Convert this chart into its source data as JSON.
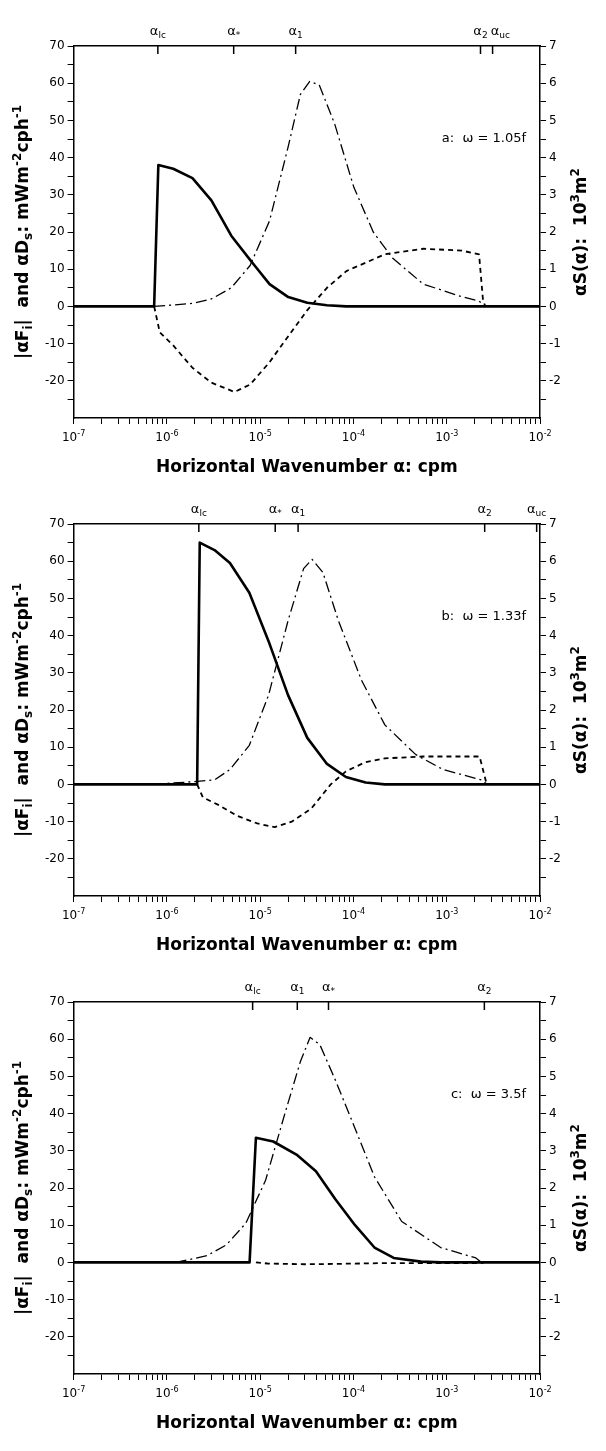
{
  "chart_data": [
    {
      "type": "line",
      "xlabel": "Horizontal Wavenumber α: cpm",
      "ylabel": "|αF$_{i}$|  and αD$_{s}$: mWm$^{-2}$cph$^{-1}$",
      "y2label": "αS(α):  10$^{3}$m$^{2}$",
      "annotations": [
        "a:  ω = 1.05f"
      ],
      "ref_lines": [
        {
          "axis": "x",
          "value": 8e-07,
          "label": "α$_{lc}$"
        },
        {
          "axis": "x",
          "value": 5.2e-06,
          "label": "α$_{*}$"
        },
        {
          "axis": "x",
          "value": 2.4e-05,
          "label": "α$_{1}$"
        },
        {
          "axis": "x",
          "value": 0.0023,
          "label": "α$_{2}$"
        },
        {
          "axis": "x",
          "value": 0.0031,
          "label": "α$_{uc}$"
        }
      ],
      "log": "x",
      "xlim": [
        1e-07,
        0.01
      ],
      "xticks": [
        {
          "value": 1e-07,
          "label": "10$^{-7}$"
        },
        {
          "value": 2e-07,
          "label": null
        },
        {
          "value": 3e-07,
          "label": null
        },
        {
          "value": 4e-07,
          "label": null
        },
        {
          "value": 5e-07,
          "label": null
        },
        {
          "value": 6e-07,
          "label": null
        },
        {
          "value": 7e-07,
          "label": null
        },
        {
          "value": 8e-07,
          "label": null
        },
        {
          "value": 9e-07,
          "label": null
        },
        {
          "value": 1e-06,
          "label": "10$^{-6}$"
        },
        {
          "value": 2e-06,
          "label": null
        },
        {
          "value": 3e-06,
          "label": null
        },
        {
          "value": 4e-06,
          "label": null
        },
        {
          "value": 5e-06,
          "label": null
        },
        {
          "value": 6e-06,
          "label": null
        },
        {
          "value": 7e-06,
          "label": null
        },
        {
          "value": 8e-06,
          "label": null
        },
        {
          "value": 9e-06,
          "label": null
        },
        {
          "value": 1e-05,
          "label": "10$^{-5}$"
        },
        {
          "value": 2e-05,
          "label": null
        },
        {
          "value": 3e-05,
          "label": null
        },
        {
          "value": 4e-05,
          "label": null
        },
        {
          "value": 5e-05,
          "label": null
        },
        {
          "value": 6e-05,
          "label": null
        },
        {
          "value": 7e-05,
          "label": null
        },
        {
          "value": 8e-05,
          "label": null
        },
        {
          "value": 9e-05,
          "label": null
        },
        {
          "value": 0.0001,
          "label": "10$^{-4}$"
        },
        {
          "value": 0.0002,
          "label": null
        },
        {
          "value": 0.0003,
          "label": null
        },
        {
          "value": 0.0004,
          "label": null
        },
        {
          "value": 0.0005,
          "label": null
        },
        {
          "value": 0.0006,
          "label": null
        },
        {
          "value": 0.0007,
          "label": null
        },
        {
          "value": 0.0008,
          "label": null
        },
        {
          "value": 0.0009,
          "label": null
        },
        {
          "value": 0.001,
          "label": "10$^{-3}$"
        },
        {
          "value": 0.002,
          "label": null
        },
        {
          "value": 0.003,
          "label": null
        },
        {
          "value": 0.004,
          "label": null
        },
        {
          "value": 0.005,
          "label": null
        },
        {
          "value": 0.006,
          "label": null
        },
        {
          "value": 0.007,
          "label": null
        },
        {
          "value": 0.008,
          "label": null
        },
        {
          "value": 0.009,
          "label": null
        },
        {
          "value": 0.01,
          "label": "10$^{-2}$"
        }
      ],
      "ylim": [
        -30,
        70
      ],
      "yticks": [
        {
          "value": -25,
          "label": null
        },
        -20,
        {
          "value": -15,
          "label": null
        },
        -10,
        {
          "value": -5,
          "label": null
        },
        0,
        {
          "value": 5,
          "label": null
        },
        10,
        {
          "value": 15,
          "label": null
        },
        20,
        {
          "value": 25,
          "label": null
        },
        30,
        {
          "value": 35,
          "label": null
        },
        40,
        {
          "value": 45,
          "label": null
        },
        50,
        {
          "value": 55,
          "label": null
        },
        60,
        {
          "value": 65,
          "label": null
        },
        70
      ],
      "y2lim": [
        -3,
        7
      ],
      "y2ticks": [
        {
          "value": -2.5,
          "label": null
        },
        -2,
        {
          "value": -1.5,
          "label": null
        },
        -1,
        {
          "value": -0.5,
          "label": null
        },
        0,
        {
          "value": 0.5,
          "label": null
        },
        1,
        {
          "value": 1.5,
          "label": null
        },
        2,
        {
          "value": 2.5,
          "label": null
        },
        3,
        {
          "value": 3.5,
          "label": null
        },
        4,
        {
          "value": 4.5,
          "label": null
        },
        5,
        {
          "value": 5.5,
          "label": null
        },
        6,
        {
          "value": 6.5,
          "label": null
        },
        7
      ],
      "series": [
        {
          "color": "#000000",
          "line_style": "solid",
          "x": [
            1e-07,
            7.3e-07,
            8.1e-07,
            1.17e-06,
            1.88e-06,
            3e-06,
            4.9e-06,
            7.8e-06,
            1.26e-05,
            2e-05,
            3.2e-05,
            5.2e-05,
            8.4e-05,
            0.01
          ],
          "values": [
            0,
            0,
            38,
            37,
            34.5,
            28.5,
            19,
            12.5,
            6,
            2.5,
            1,
            0.3,
            0,
            0
          ]
        },
        {
          "color": "#000000",
          "line_style": "dashdot",
          "axis": "y2",
          "x": [
            7.3e-07,
            1.88e-06,
            3e-06,
            4.9e-06,
            7.8e-06,
            1.26e-05,
            2e-05,
            2.7e-05,
            3.4e-05,
            4.3e-05,
            6.3e-05,
            0.000101,
            0.000163,
            0.000262,
            0.00056,
            0.00145,
            0.00222,
            0.0026
          ],
          "values": [
            0,
            0.08,
            0.2,
            0.5,
            1.1,
            2.3,
            4.3,
            5.7,
            6.05,
            5.95,
            4.9,
            3.2,
            2.0,
            1.3,
            0.6,
            0.26,
            0.14,
            0
          ]
        },
        {
          "color": "#000000",
          "line_style": "dashed",
          "x": [
            7.3e-07,
            8.4e-07,
            1.17e-06,
            1.88e-06,
            3e-06,
            5.3e-06,
            7.8e-06,
            1.26e-05,
            2e-05,
            3.2e-05,
            5.2e-05,
            8.4e-05,
            0.000217,
            0.00056,
            0.00145,
            0.00222,
            0.00245,
            0.0026
          ],
          "values": [
            0,
            -7,
            -10.5,
            -16.5,
            -20.5,
            -23,
            -21,
            -15,
            -8,
            -1,
            5,
            9.5,
            14,
            15.5,
            15,
            14,
            1.5,
            0
          ]
        }
      ]
    },
    {
      "type": "line",
      "xlabel": "Horizontal Wavenumber α: cpm",
      "ylabel": "|αF$_{i}$|  and αD$_{s}$: mWm$^{-2}$cph$^{-1}$",
      "y2label": "αS(α):  10$^{3}$m$^{2}$",
      "annotations": [
        "b:  ω = 1.33f"
      ],
      "ref_lines": [
        {
          "axis": "x",
          "value": 2.2e-06,
          "label": "α$_{lc}$"
        },
        {
          "axis": "x",
          "value": 1.45e-05,
          "label": "α$_{*}$"
        },
        {
          "axis": "x",
          "value": 2.55e-05,
          "label": "α$_{1}$"
        },
        {
          "axis": "x",
          "value": 0.00255,
          "label": "α$_{2}$"
        },
        {
          "axis": "x",
          "value": 0.0092,
          "label": "α$_{uc}$"
        }
      ],
      "log": "x",
      "xlim": [
        1e-07,
        0.01
      ],
      "xticks": [
        {
          "value": 1e-07,
          "label": "10$^{-7}$"
        },
        {
          "value": 2e-07,
          "label": null
        },
        {
          "value": 3e-07,
          "label": null
        },
        {
          "value": 4e-07,
          "label": null
        },
        {
          "value": 5e-07,
          "label": null
        },
        {
          "value": 6e-07,
          "label": null
        },
        {
          "value": 7e-07,
          "label": null
        },
        {
          "value": 8e-07,
          "label": null
        },
        {
          "value": 9e-07,
          "label": null
        },
        {
          "value": 1e-06,
          "label": "10$^{-6}$"
        },
        {
          "value": 2e-06,
          "label": null
        },
        {
          "value": 3e-06,
          "label": null
        },
        {
          "value": 4e-06,
          "label": null
        },
        {
          "value": 5e-06,
          "label": null
        },
        {
          "value": 6e-06,
          "label": null
        },
        {
          "value": 7e-06,
          "label": null
        },
        {
          "value": 8e-06,
          "label": null
        },
        {
          "value": 9e-06,
          "label": null
        },
        {
          "value": 1e-05,
          "label": "10$^{-5}$"
        },
        {
          "value": 2e-05,
          "label": null
        },
        {
          "value": 3e-05,
          "label": null
        },
        {
          "value": 4e-05,
          "label": null
        },
        {
          "value": 5e-05,
          "label": null
        },
        {
          "value": 6e-05,
          "label": null
        },
        {
          "value": 7e-05,
          "label": null
        },
        {
          "value": 8e-05,
          "label": null
        },
        {
          "value": 9e-05,
          "label": null
        },
        {
          "value": 0.0001,
          "label": "10$^{-4}$"
        },
        {
          "value": 0.0002,
          "label": null
        },
        {
          "value": 0.0003,
          "label": null
        },
        {
          "value": 0.0004,
          "label": null
        },
        {
          "value": 0.0005,
          "label": null
        },
        {
          "value": 0.0006,
          "label": null
        },
        {
          "value": 0.0007,
          "label": null
        },
        {
          "value": 0.0008,
          "label": null
        },
        {
          "value": 0.0009,
          "label": null
        },
        {
          "value": 0.001,
          "label": "10$^{-3}$"
        },
        {
          "value": 0.002,
          "label": null
        },
        {
          "value": 0.003,
          "label": null
        },
        {
          "value": 0.004,
          "label": null
        },
        {
          "value": 0.005,
          "label": null
        },
        {
          "value": 0.006,
          "label": null
        },
        {
          "value": 0.007,
          "label": null
        },
        {
          "value": 0.008,
          "label": null
        },
        {
          "value": 0.009,
          "label": null
        },
        {
          "value": 0.01,
          "label": "10$^{-2}$"
        }
      ],
      "ylim": [
        -30,
        70
      ],
      "yticks": [
        {
          "value": -25,
          "label": null
        },
        -20,
        {
          "value": -15,
          "label": null
        },
        -10,
        {
          "value": -5,
          "label": null
        },
        0,
        {
          "value": 5,
          "label": null
        },
        10,
        {
          "value": 15,
          "label": null
        },
        20,
        {
          "value": 25,
          "label": null
        },
        30,
        {
          "value": 35,
          "label": null
        },
        40,
        {
          "value": 45,
          "label": null
        },
        50,
        {
          "value": 55,
          "label": null
        },
        60,
        {
          "value": 65,
          "label": null
        },
        70
      ],
      "y2lim": [
        -3,
        7
      ],
      "y2ticks": [
        {
          "value": -2.5,
          "label": null
        },
        -2,
        {
          "value": -1.5,
          "label": null
        },
        -1,
        {
          "value": -0.5,
          "label": null
        },
        0,
        {
          "value": 0.5,
          "label": null
        },
        1,
        {
          "value": 1.5,
          "label": null
        },
        2,
        {
          "value": 2.5,
          "label": null
        },
        3,
        {
          "value": 3.5,
          "label": null
        },
        4,
        {
          "value": 4.5,
          "label": null
        },
        5,
        {
          "value": 5.5,
          "label": null
        },
        6,
        {
          "value": 6.5,
          "label": null
        },
        7
      ],
      "series": [
        {
          "color": "#000000",
          "line_style": "solid",
          "x": [
            1e-07,
            2.11e-06,
            2.25e-06,
            3.24e-06,
            4.74e-06,
            7.65e-06,
            1.23e-05,
            1.99e-05,
            3.2e-05,
            5.2e-05,
            8.3e-05,
            0.000135,
            0.000217,
            0.01
          ],
          "values": [
            0,
            0,
            65,
            63,
            59.5,
            51.5,
            38.5,
            24,
            12.5,
            5.5,
            2,
            0.5,
            0,
            0
          ]
        },
        {
          "color": "#000000",
          "line_style": "dashdot",
          "axis": "y2",
          "x": [
            7e-07,
            2.11e-06,
            3.24e-06,
            4.74e-06,
            7.65e-06,
            1.23e-05,
            1.99e-05,
            2.92e-05,
            3.6e-05,
            4.7e-05,
            6.9e-05,
            0.000122,
            0.000217,
            0.000466,
            0.00091,
            0.00236,
            0.00273
          ],
          "values": [
            0,
            0.08,
            0.12,
            0.4,
            1.05,
            2.4,
            4.4,
            5.8,
            6.05,
            5.7,
            4.4,
            2.8,
            1.6,
            0.8,
            0.4,
            0.12,
            0
          ]
        },
        {
          "color": "#000000",
          "line_style": "dashed",
          "x": [
            2.11e-06,
            2.43e-06,
            3.56e-06,
            5.74e-06,
            9.3e-06,
            1.43e-05,
            2.19e-05,
            3.53e-05,
            5.7e-05,
            8.3e-05,
            0.000135,
            0.000217,
            0.00056,
            0.00147,
            0.00225,
            0.00265,
            0.00286
          ],
          "values": [
            0,
            -3.5,
            -5.5,
            -8.5,
            -10.5,
            -11.5,
            -10,
            -6.5,
            0,
            3.5,
            6,
            7,
            7.5,
            7.5,
            7.5,
            0.5,
            0
          ]
        }
      ]
    },
    {
      "type": "line",
      "xlabel": "Horizontal Wavenumber α: cpm",
      "ylabel": "|αF$_{i}$|  and αD$_{s}$: mWm$^{-2}$cph$^{-1}$",
      "y2label": "αS(α):  10$^{3}$m$^{2}$",
      "annotations": [
        "c:  ω = 3.5f"
      ],
      "ref_lines": [
        {
          "axis": "x",
          "value": 8.3e-06,
          "label": "α$_{lc}$"
        },
        {
          "axis": "x",
          "value": 2.5e-05,
          "label": "α$_{1}$"
        },
        {
          "axis": "x",
          "value": 5.4e-05,
          "label": "α$_{*}$"
        },
        {
          "axis": "x",
          "value": 0.00253,
          "label": "α$_{2}$"
        }
      ],
      "log": "x",
      "xlim": [
        1e-07,
        0.01
      ],
      "xticks": [
        {
          "value": 1e-07,
          "label": "10$^{-7}$"
        },
        {
          "value": 2e-07,
          "label": null
        },
        {
          "value": 3e-07,
          "label": null
        },
        {
          "value": 4e-07,
          "label": null
        },
        {
          "value": 5e-07,
          "label": null
        },
        {
          "value": 6e-07,
          "label": null
        },
        {
          "value": 7e-07,
          "label": null
        },
        {
          "value": 8e-07,
          "label": null
        },
        {
          "value": 9e-07,
          "label": null
        },
        {
          "value": 1e-06,
          "label": "10$^{-6}$"
        },
        {
          "value": 2e-06,
          "label": null
        },
        {
          "value": 3e-06,
          "label": null
        },
        {
          "value": 4e-06,
          "label": null
        },
        {
          "value": 5e-06,
          "label": null
        },
        {
          "value": 6e-06,
          "label": null
        },
        {
          "value": 7e-06,
          "label": null
        },
        {
          "value": 8e-06,
          "label": null
        },
        {
          "value": 9e-06,
          "label": null
        },
        {
          "value": 1e-05,
          "label": "10$^{-5}$"
        },
        {
          "value": 2e-05,
          "label": null
        },
        {
          "value": 3e-05,
          "label": null
        },
        {
          "value": 4e-05,
          "label": null
        },
        {
          "value": 5e-05,
          "label": null
        },
        {
          "value": 6e-05,
          "label": null
        },
        {
          "value": 7e-05,
          "label": null
        },
        {
          "value": 8e-05,
          "label": null
        },
        {
          "value": 9e-05,
          "label": null
        },
        {
          "value": 0.0001,
          "label": "10$^{-4}$"
        },
        {
          "value": 0.0002,
          "label": null
        },
        {
          "value": 0.0003,
          "label": null
        },
        {
          "value": 0.0004,
          "label": null
        },
        {
          "value": 0.0005,
          "label": null
        },
        {
          "value": 0.0006,
          "label": null
        },
        {
          "value": 0.0007,
          "label": null
        },
        {
          "value": 0.0008,
          "label": null
        },
        {
          "value": 0.0009,
          "label": null
        },
        {
          "value": 0.001,
          "label": "10$^{-3}$"
        },
        {
          "value": 0.002,
          "label": null
        },
        {
          "value": 0.003,
          "label": null
        },
        {
          "value": 0.004,
          "label": null
        },
        {
          "value": 0.005,
          "label": null
        },
        {
          "value": 0.006,
          "label": null
        },
        {
          "value": 0.007,
          "label": null
        },
        {
          "value": 0.008,
          "label": null
        },
        {
          "value": 0.009,
          "label": null
        },
        {
          "value": 0.01,
          "label": "10$^{-2}$"
        }
      ],
      "ylim": [
        -30,
        70
      ],
      "yticks": [
        {
          "value": -25,
          "label": null
        },
        -20,
        {
          "value": -15,
          "label": null
        },
        -10,
        {
          "value": -5,
          "label": null
        },
        0,
        {
          "value": 5,
          "label": null
        },
        10,
        {
          "value": 15,
          "label": null
        },
        20,
        {
          "value": 25,
          "label": null
        },
        30,
        {
          "value": 35,
          "label": null
        },
        40,
        {
          "value": 45,
          "label": null
        },
        50,
        {
          "value": 55,
          "label": null
        },
        60,
        {
          "value": 65,
          "label": null
        },
        70
      ],
      "y2lim": [
        -3,
        7
      ],
      "y2ticks": [
        {
          "value": -2.5,
          "label": null
        },
        -2,
        {
          "value": -1.5,
          "label": null
        },
        -1,
        {
          "value": -0.5,
          "label": null
        },
        0,
        {
          "value": 0.5,
          "label": null
        },
        1,
        {
          "value": 1.5,
          "label": null
        },
        2,
        {
          "value": 2.5,
          "label": null
        },
        3,
        {
          "value": 3.5,
          "label": null
        },
        4,
        {
          "value": 4.5,
          "label": null
        },
        5,
        {
          "value": 5.5,
          "label": null
        },
        6,
        {
          "value": 6.5,
          "label": null
        },
        7
      ],
      "series": [
        {
          "color": "#000000",
          "line_style": "solid",
          "x": [
            1e-07,
            7.7e-06,
            9e-06,
            1.38e-05,
            2.45e-05,
            3.96e-05,
            6.4e-05,
            0.000104,
            0.000168,
            0.00027,
            0.00053,
            0.00086,
            0.01
          ],
          "values": [
            0,
            0,
            33.5,
            32.5,
            29,
            24.5,
            17,
            10,
            4,
            1.2,
            0.2,
            0,
            0
          ]
        },
        {
          "color": "#000000",
          "line_style": "dashdot",
          "axis": "y2",
          "x": [
            1.24e-06,
            2.69e-06,
            4.34e-06,
            7e-06,
            1.14e-05,
            1.84e-05,
            2.7e-05,
            3.43e-05,
            4.37e-05,
            6.4e-05,
            0.000104,
            0.000168,
            0.000329,
            0.00086,
            0.00205,
            0.00236
          ],
          "values": [
            0,
            0.18,
            0.47,
            1.05,
            2.2,
            4.0,
            5.4,
            6.05,
            5.85,
            4.9,
            3.6,
            2.3,
            1.1,
            0.4,
            0.12,
            0
          ]
        },
        {
          "color": "#000000",
          "line_style": "dashed",
          "x": [
            9e-06,
            1.2e-05,
            3e-05,
            6.4e-05,
            0.0002,
            0.0023,
            0.0025
          ],
          "values": [
            0,
            -0.3,
            -0.5,
            -0.4,
            -0.2,
            -0.2,
            0
          ]
        }
      ]
    }
  ]
}
